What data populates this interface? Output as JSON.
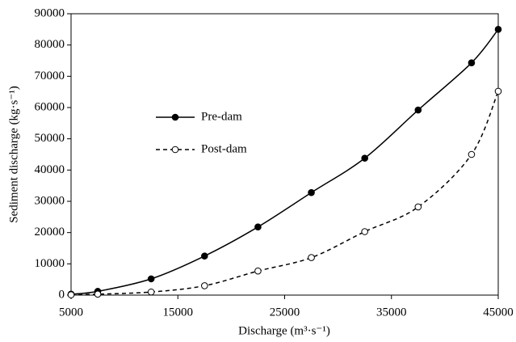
{
  "chart_data": {
    "type": "line",
    "xlabel": "Discharge (m³·s⁻¹)",
    "ylabel": "Sediment discharge (kg·s⁻¹)",
    "x": [
      5000,
      7500,
      12500,
      17500,
      22500,
      27500,
      32500,
      37500,
      42500,
      45000
    ],
    "series": [
      {
        "name": "Pre-dam",
        "color": "#000000",
        "linestyle": "solid",
        "marker": "filled",
        "values": [
          300,
          1200,
          5200,
          12500,
          21800,
          32800,
          43800,
          59200,
          74300,
          85000
        ]
      },
      {
        "name": "Post-dam",
        "color": "#000000",
        "linestyle": "dashed",
        "marker": "open",
        "values": [
          100,
          300,
          1000,
          3000,
          7700,
          12000,
          20300,
          28200,
          45000,
          65200
        ]
      }
    ],
    "xlim": [
      5000,
      45000
    ],
    "xticks": [
      5000,
      15000,
      25000,
      35000,
      45000
    ],
    "ylim": [
      0,
      90000
    ],
    "yticks": [
      0,
      10000,
      20000,
      30000,
      40000,
      50000,
      60000,
      70000,
      80000,
      90000
    ],
    "grid": false,
    "legend_position": "left"
  }
}
